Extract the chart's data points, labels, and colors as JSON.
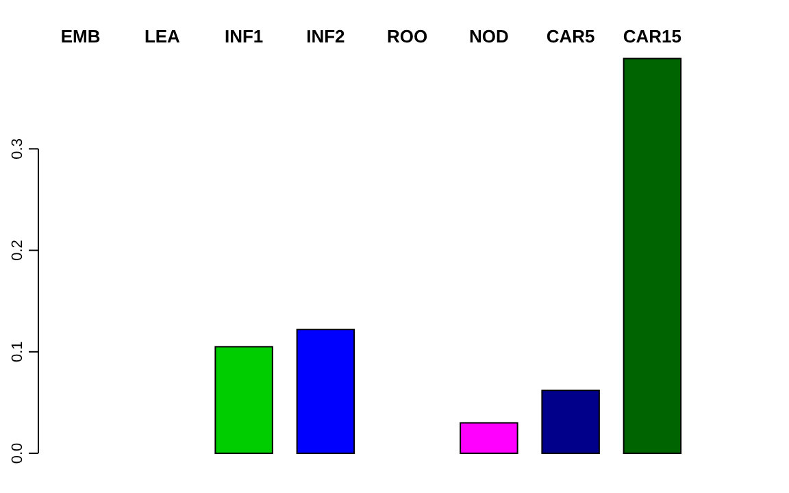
{
  "chart_data": {
    "type": "bar",
    "categories": [
      "EMB",
      "LEA",
      "INF1",
      "INF2",
      "ROO",
      "NOD",
      "CAR5",
      "CAR15"
    ],
    "values": [
      0,
      0,
      0.105,
      0.122,
      0,
      0.03,
      0.062,
      0.389
    ],
    "colors": [
      "#000000",
      "#000000",
      "#00cd00",
      "#0000ff",
      "#000000",
      "#ff00ff",
      "#00008b",
      "#006400"
    ],
    "ylim": [
      0,
      0.39
    ],
    "yticks": [
      {
        "value": 0,
        "label": "0.0"
      },
      0.1,
      0.2,
      0.3
    ],
    "grid": false
  }
}
